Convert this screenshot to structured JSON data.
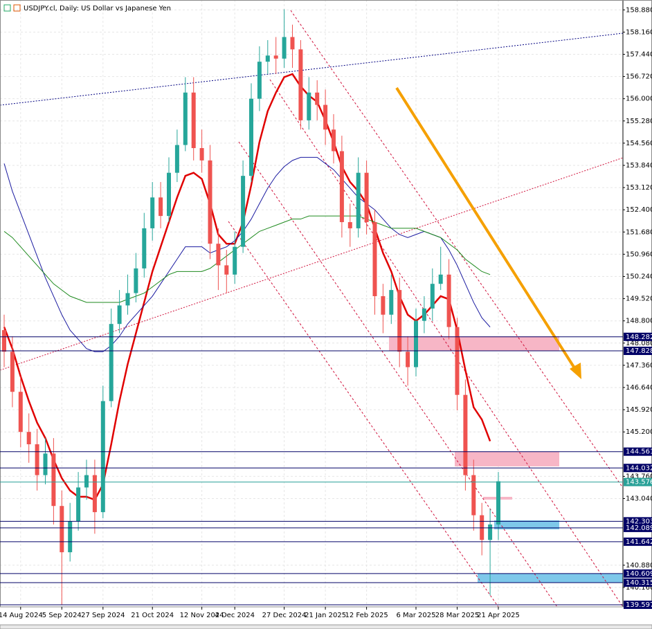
{
  "chart_data": {
    "type": "candlestick",
    "title": "USDJPY.cl, Daily:  US Dollar vs Japanese Yen",
    "up_color": "#26a69a",
    "down_color": "#ef5350",
    "categories": [
      "",
      null,
      "14 Aug 2024",
      null,
      null,
      null,
      null,
      "5 Sep 2024",
      null,
      null,
      null,
      null,
      "27 Sep 2024",
      null,
      null,
      null,
      null,
      null,
      "21 Oct 2024",
      null,
      null,
      null,
      null,
      null,
      "12 Nov 2024",
      null,
      null,
      null,
      "4 Dec 2024",
      null,
      null,
      null,
      null,
      null,
      "27 Dec 2024",
      null,
      null,
      null,
      null,
      "21 Jan 2025",
      null,
      null,
      null,
      null,
      "12 Feb 2025",
      null,
      null,
      null,
      null,
      null,
      "6 Mar 2025",
      null,
      null,
      null,
      null,
      "28 Mar 2025",
      null,
      null,
      null,
      null,
      "21 Apr 2025"
    ],
    "open": [
      148.5,
      147.8,
      146.5,
      145.2,
      144.8,
      143.8,
      144.5,
      142.8,
      141.3,
      142.3,
      143.4,
      143.8,
      142.6,
      146.2,
      148.7,
      149.3,
      149.7,
      150.5,
      151.8,
      152.8,
      152.2,
      153.6,
      154.5,
      156.2,
      154.4,
      154.0,
      151.3,
      150.6,
      150.3,
      151.2,
      153.5,
      156.0,
      157.2,
      157.4,
      157.3,
      158.0,
      157.6,
      155.3,
      156.2,
      155.8,
      155.0,
      154.3,
      152.0,
      151.8,
      153.6,
      152.0,
      149.6,
      149.0,
      149.8,
      147.8,
      147.3,
      148.8,
      149.2,
      150.0,
      150.3,
      148.6,
      146.4,
      143.8,
      142.5,
      141.7,
      142.2
    ],
    "high": [
      149.0,
      148.3,
      147.0,
      145.8,
      145.3,
      145.0,
      145.0,
      143.3,
      142.9,
      143.9,
      144.3,
      144.3,
      146.7,
      149.2,
      149.8,
      150.3,
      151.0,
      152.3,
      153.3,
      153.3,
      154.1,
      155.0,
      156.7,
      156.7,
      155.0,
      154.5,
      151.8,
      151.1,
      151.7,
      154.0,
      156.5,
      157.7,
      157.9,
      158.0,
      158.9,
      158.4,
      157.9,
      156.7,
      156.6,
      156.3,
      155.5,
      154.8,
      152.6,
      154.1,
      154.0,
      152.4,
      150.0,
      150.3,
      150.2,
      148.3,
      149.2,
      149.6,
      150.5,
      151.2,
      150.8,
      148.9,
      146.9,
      144.3,
      142.9,
      142.7,
      143.9
    ],
    "low": [
      147.3,
      146.0,
      144.7,
      144.2,
      143.3,
      143.5,
      142.2,
      139.6,
      141.0,
      142.0,
      143.0,
      141.9,
      142.4,
      146.0,
      148.4,
      149.0,
      149.4,
      150.2,
      151.4,
      151.8,
      152.0,
      153.3,
      154.3,
      154.0,
      153.6,
      150.8,
      149.8,
      149.7,
      150.0,
      151.0,
      153.3,
      155.6,
      156.8,
      156.8,
      157.0,
      157.0,
      155.0,
      155.0,
      155.3,
      154.5,
      153.9,
      151.5,
      151.2,
      151.5,
      151.6,
      149.0,
      148.4,
      148.7,
      147.3,
      146.7,
      147.0,
      148.4,
      148.8,
      149.8,
      148.2,
      145.9,
      143.3,
      142.0,
      141.2,
      139.9,
      141.7
    ],
    "close": [
      147.8,
      146.5,
      145.2,
      144.8,
      143.8,
      144.5,
      142.8,
      141.3,
      142.3,
      143.4,
      143.8,
      142.6,
      146.2,
      148.7,
      149.3,
      149.7,
      150.5,
      151.8,
      152.8,
      152.2,
      153.6,
      154.5,
      156.2,
      154.4,
      154.0,
      151.3,
      150.6,
      150.3,
      151.2,
      153.5,
      156.0,
      157.2,
      157.4,
      157.3,
      158.0,
      157.6,
      155.3,
      156.2,
      155.8,
      155.0,
      154.3,
      152.0,
      151.8,
      153.6,
      152.0,
      149.6,
      149.0,
      149.8,
      147.8,
      147.3,
      148.8,
      149.2,
      150.0,
      150.3,
      148.6,
      146.4,
      143.8,
      142.5,
      141.7,
      142.2,
      143.6
    ],
    "series": [
      {
        "color": "#e00000",
        "values": [
          148.6,
          147.9,
          147.0,
          146.2,
          145.5,
          145.0,
          144.3,
          143.7,
          143.3,
          143.1,
          143.1,
          143.0,
          143.5,
          144.8,
          146.2,
          147.4,
          148.4,
          149.4,
          150.4,
          151.2,
          152.0,
          152.8,
          153.5,
          153.6,
          153.4,
          152.6,
          151.6,
          151.3,
          151.3,
          152.0,
          153.2,
          154.6,
          155.6,
          156.2,
          156.7,
          156.8,
          156.4,
          156.1,
          155.9,
          155.3,
          154.6,
          153.8,
          153.3,
          153.0,
          152.6,
          151.8,
          151.0,
          150.4,
          149.6,
          149.0,
          148.8,
          149.0,
          149.3,
          149.6,
          149.5,
          148.5,
          147.2,
          146.0,
          145.6,
          144.9,
          null
        ]
      },
      {
        "color": "#1a1aa0",
        "values": [
          153.9,
          153.0,
          152.3,
          151.6,
          150.9,
          150.2,
          149.6,
          149.0,
          148.5,
          148.2,
          147.9,
          147.8,
          147.8,
          148.0,
          148.3,
          148.7,
          149.0,
          149.3,
          149.6,
          150.0,
          150.4,
          150.8,
          151.2,
          151.2,
          151.2,
          151.0,
          151.1,
          151.2,
          151.4,
          151.7,
          152.1,
          152.6,
          153.1,
          153.5,
          153.8,
          154.0,
          154.1,
          154.1,
          154.1,
          153.9,
          153.7,
          153.4,
          153.1,
          152.8,
          152.6,
          152.4,
          152.1,
          151.8,
          151.6,
          151.5,
          151.6,
          151.7,
          151.6,
          151.5,
          151.1,
          150.6,
          150.0,
          149.4,
          148.9,
          148.6,
          null
        ]
      },
      {
        "color": "#1e8a1e",
        "values": [
          151.7,
          151.5,
          151.2,
          150.9,
          150.6,
          150.3,
          150.0,
          149.8,
          149.6,
          149.5,
          149.4,
          149.4,
          149.4,
          149.4,
          149.4,
          149.5,
          149.6,
          149.7,
          149.9,
          150.1,
          150.3,
          150.4,
          150.4,
          150.4,
          150.4,
          150.5,
          150.7,
          150.9,
          151.1,
          151.3,
          151.5,
          151.7,
          151.8,
          151.9,
          152.0,
          152.1,
          152.1,
          152.2,
          152.2,
          152.2,
          152.2,
          152.2,
          152.2,
          152.2,
          152.1,
          152.0,
          151.9,
          151.8,
          151.8,
          151.8,
          151.8,
          151.7,
          151.6,
          151.5,
          151.3,
          151.1,
          150.8,
          150.6,
          150.4,
          150.3,
          null
        ]
      }
    ],
    "ylim": [
      139.53,
      159.2
    ],
    "yticks": [
      {
        "value": 140.16,
        "label": "140.160"
      },
      {
        "value": 140.88,
        "label": "140.880"
      },
      {
        "value": 143.04,
        "label": "143.040"
      },
      {
        "value": 143.76,
        "label": "143.760"
      },
      {
        "value": 145.2,
        "label": "145.200"
      },
      {
        "value": 145.92,
        "label": "145.920"
      },
      {
        "value": 146.64,
        "label": "146.640"
      },
      {
        "value": 147.36,
        "label": "147.360"
      },
      {
        "value": 148.08,
        "label": "148.080"
      },
      {
        "value": 148.8,
        "label": "148.800"
      },
      {
        "value": 149.52,
        "label": "149.520"
      },
      {
        "value": 150.24,
        "label": "150.240"
      },
      {
        "value": 150.96,
        "label": "150.960"
      },
      {
        "value": 151.68,
        "label": "151.680"
      },
      {
        "value": 152.4,
        "label": "152.400"
      },
      {
        "value": 153.12,
        "label": "153.120"
      },
      {
        "value": 153.84,
        "label": "153.840"
      },
      {
        "value": 154.56,
        "label": "154.560"
      },
      {
        "value": 155.28,
        "label": "155.280"
      },
      {
        "value": 156.0,
        "label": "156.000"
      },
      {
        "value": 156.72,
        "label": "156.720"
      },
      {
        "value": 157.44,
        "label": "157.440"
      },
      {
        "value": 158.16,
        "label": "158.160"
      },
      {
        "value": 158.88,
        "label": "158.880"
      }
    ],
    "grid": true,
    "levels": [
      {
        "value": 148.282,
        "label": "148.282",
        "color": "#000066"
      },
      {
        "value": 147.828,
        "label": "147.828",
        "color": "#000066"
      },
      {
        "value": 144.561,
        "label": "144.561",
        "color": "#000066"
      },
      {
        "value": 144.032,
        "label": "144.032",
        "color": "#000066"
      },
      {
        "value": 143.576,
        "label": "143.576",
        "color": "#2aa198"
      },
      {
        "value": 142.303,
        "label": "142.303",
        "color": "#000066"
      },
      {
        "value": 142.089,
        "label": "142.089",
        "color": "#000066"
      },
      {
        "value": 141.642,
        "label": "141.642",
        "color": "#000066"
      },
      {
        "value": 140.609,
        "label": "140.609",
        "color": "#000066"
      },
      {
        "value": 140.315,
        "label": "140.315",
        "color": "#000066"
      },
      {
        "value": 139.597,
        "label": "139.597",
        "color": "#000066"
      }
    ]
  }
}
